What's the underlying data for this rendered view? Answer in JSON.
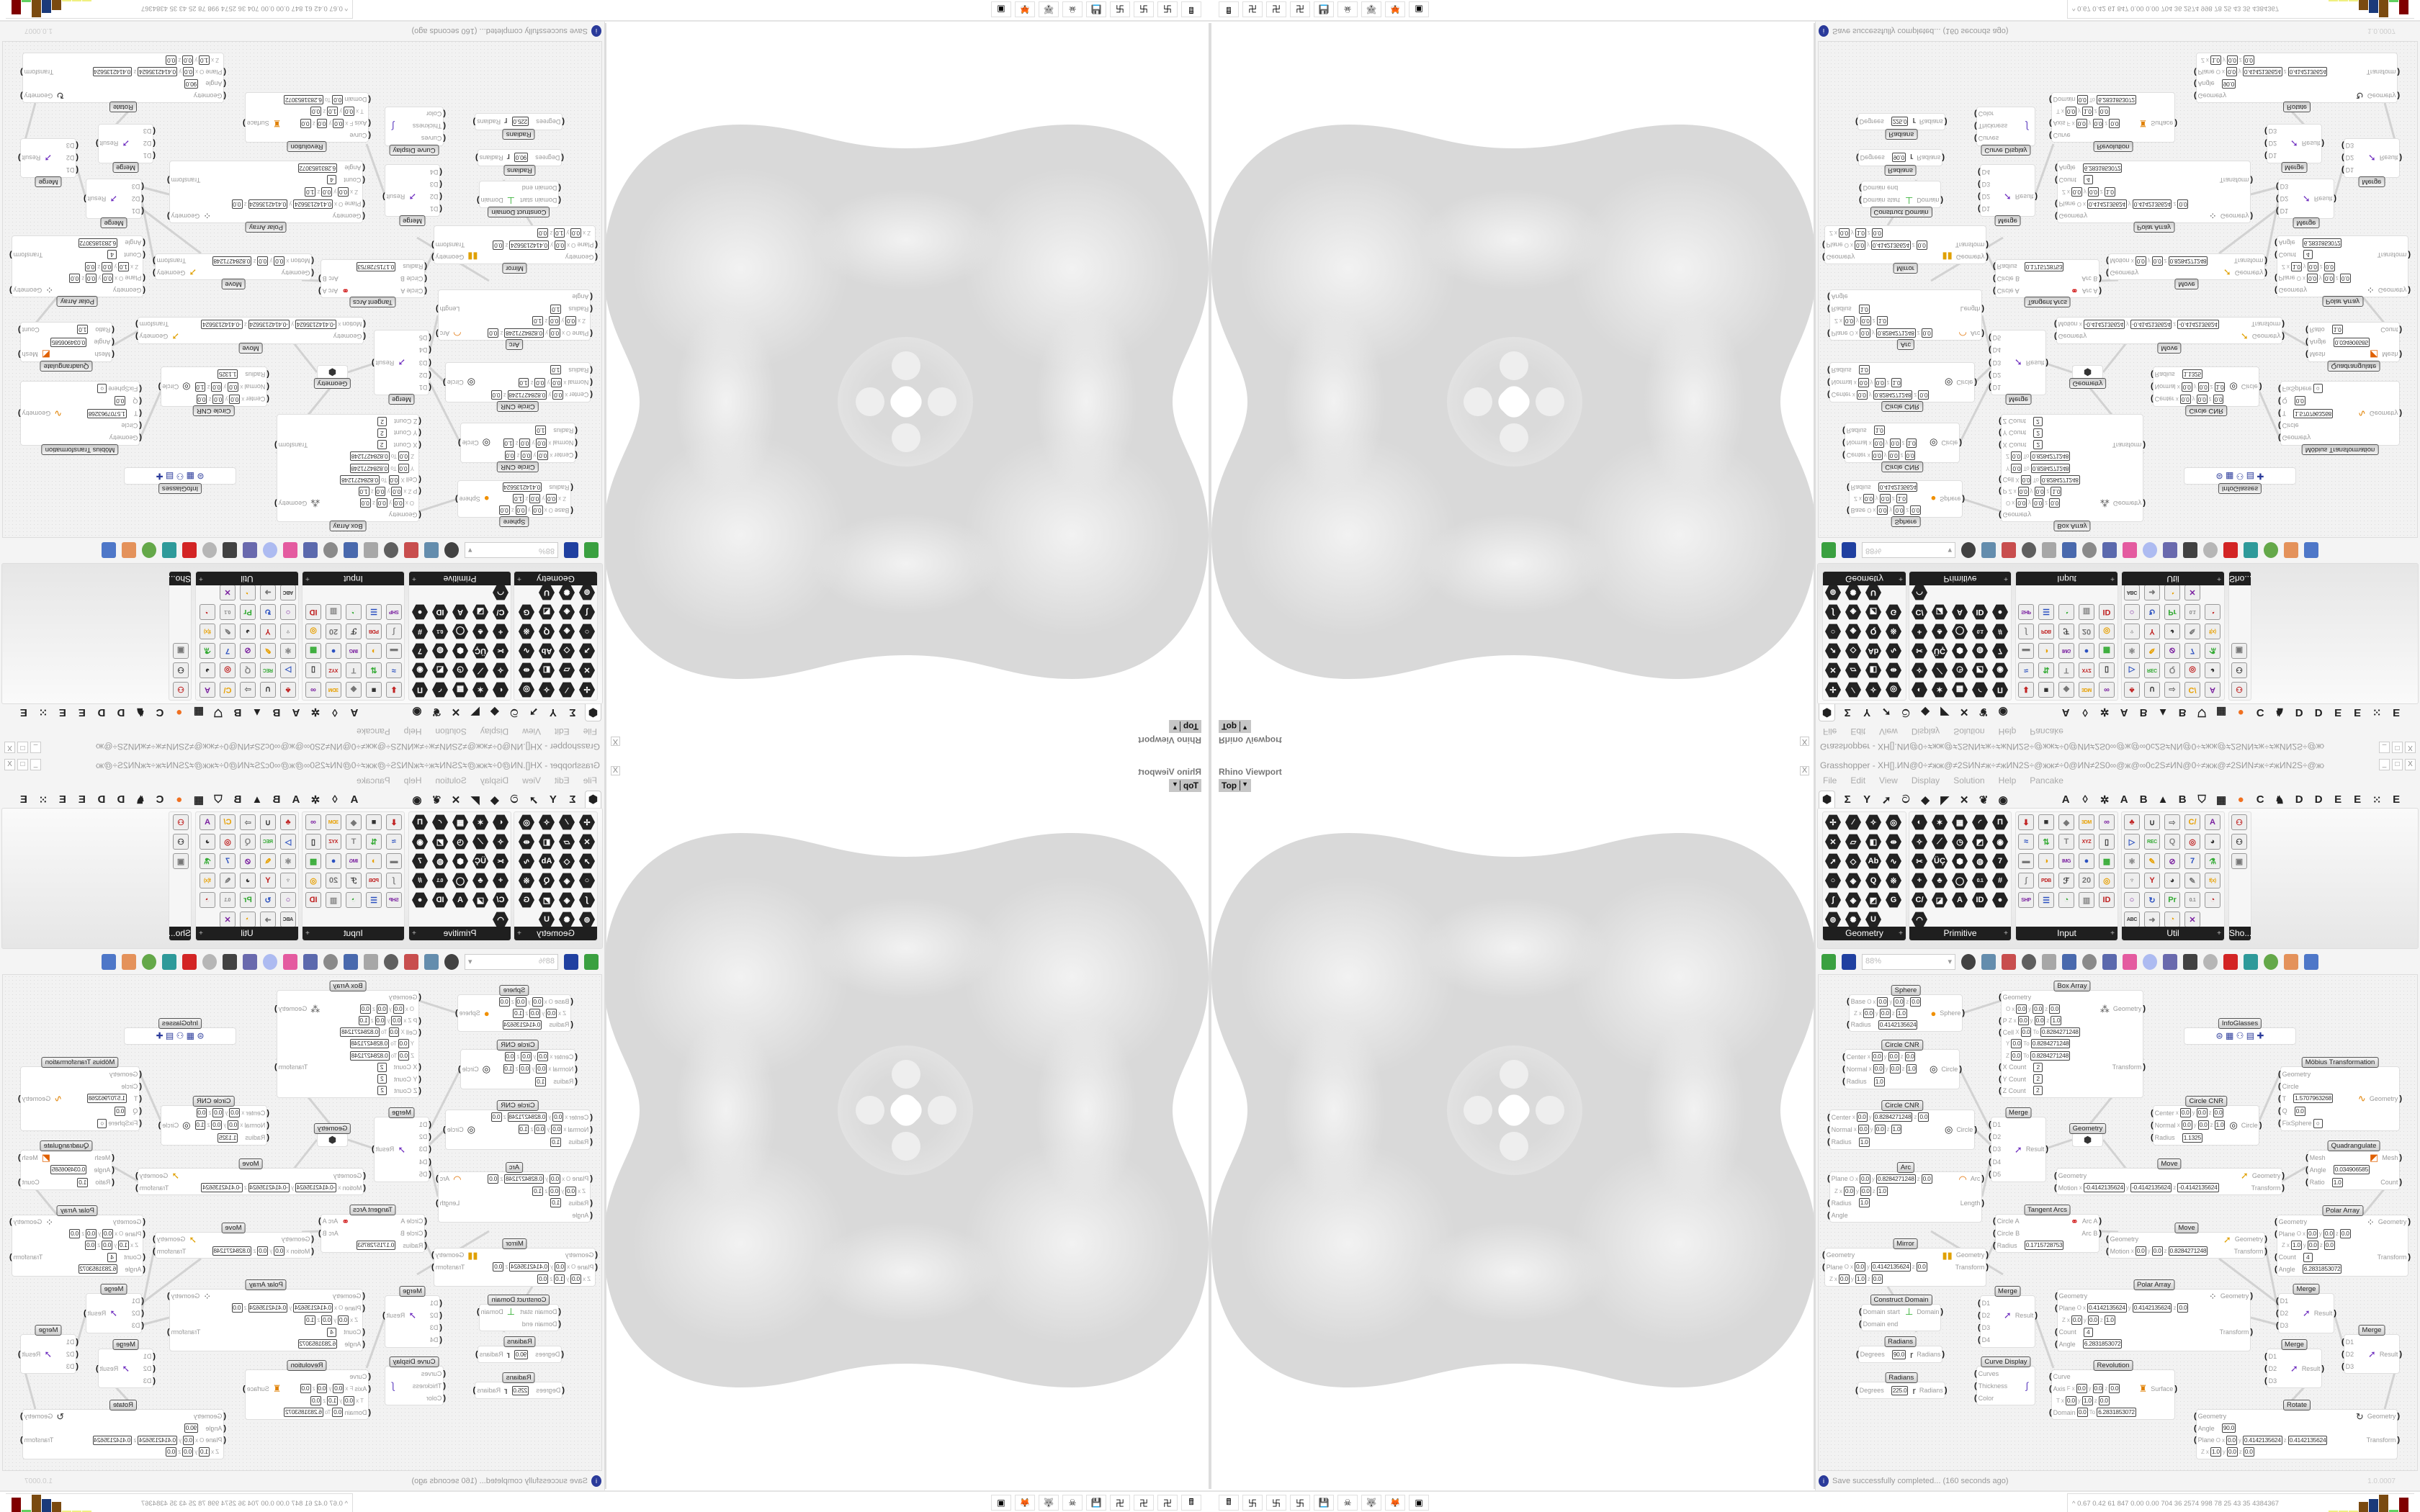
{
  "viewport": {
    "title": "Rhino Viewport",
    "view_label": "Top",
    "close_label": "X"
  },
  "grasshopper": {
    "title": "Grasshopper - XH[].ИN@0÷≠жж@≠2SИN≠ж÷≠жИN2S÷@жж≠÷0@ИN≠2S0∞@ж@∞0c2S≠ИN@0÷≠жж@≠2SИN≠ж÷≠жИN2S÷@жж≠÷0@ИN",
    "window_buttons": [
      "_",
      "□",
      "X"
    ],
    "menu": [
      "File",
      "Edit",
      "View",
      "Display",
      "Solution",
      "Help",
      "Pancake"
    ],
    "tabs": [
      {
        "icon": "params-hexagon-icon",
        "glyph": "⬢",
        "selected": true
      },
      {
        "icon": "maths-sigma-icon",
        "glyph": "Σ"
      },
      {
        "icon": "sets-branch-icon",
        "glyph": "Y"
      },
      {
        "icon": "vector-arrow-icon",
        "glyph": "➚"
      },
      {
        "icon": "curve-hook-icon",
        "glyph": "ට"
      },
      {
        "icon": "surface-icon",
        "glyph": "◆"
      },
      {
        "icon": "mesh-icon",
        "glyph": "◤"
      },
      {
        "icon": "intersect-icon",
        "glyph": "✕"
      },
      {
        "icon": "transform-icon",
        "glyph": "❦"
      },
      {
        "icon": "display-eye-icon",
        "glyph": "◉"
      },
      {
        "icon": "letter-a",
        "glyph": "A",
        "gap": true
      },
      {
        "icon": "leaf-icon",
        "glyph": "◊"
      },
      {
        "icon": "gear-icon",
        "glyph": "✲"
      },
      {
        "icon": "letter-a",
        "glyph": "A"
      },
      {
        "icon": "letter-b",
        "glyph": "B"
      },
      {
        "icon": "mountain-icon",
        "glyph": "▲"
      },
      {
        "icon": "letter-b",
        "glyph": "B"
      },
      {
        "icon": "shield-icon",
        "glyph": "⛉"
      },
      {
        "icon": "grid-icon",
        "glyph": "▦"
      },
      {
        "icon": "orange-circle-icon",
        "glyph": "●",
        "color": "#f07020"
      },
      {
        "icon": "letter-c",
        "glyph": "C"
      },
      {
        "icon": "rooster-icon",
        "glyph": "♞"
      },
      {
        "icon": "letter-d",
        "glyph": "D"
      },
      {
        "icon": "letter-d",
        "glyph": "D"
      },
      {
        "icon": "letter-e",
        "glyph": "E"
      },
      {
        "icon": "letter-e",
        "glyph": "E"
      },
      {
        "icon": "grid-dots-icon",
        "glyph": "⁙"
      },
      {
        "icon": "letter-e",
        "glyph": "E"
      }
    ],
    "palette": [
      {
        "label": "Geometry",
        "style": "hex",
        "cols": 4,
        "glyphs": [
          "✢",
          "⁄",
          "✧",
          "◎",
          "✕",
          "▱",
          "◧",
          "⇹",
          "➚",
          "◇",
          "Ab",
          "∿",
          "○",
          "◈",
          "Q",
          "※",
          "∫",
          "◈",
          "◩",
          "G",
          "⊚",
          "✺",
          "U"
        ]
      },
      {
        "label": "Primitive",
        "style": "hex",
        "cols": 5,
        "glyphs": [
          "◐",
          "✶",
          "▦",
          "◜",
          "Π",
          "✧",
          "⟋",
          "◷",
          "◩",
          "◉",
          "✂",
          "ÜÇ",
          "⬢",
          "◍",
          "7",
          "+",
          "♣",
          "◯",
          "0.1",
          "#",
          "C/",
          "◪",
          "A",
          "ID",
          "●",
          "◠"
        ]
      },
      {
        "label": "Input",
        "style": "col",
        "cols": 5,
        "glyphs": [
          "⬇",
          "■",
          "◆",
          "3DM",
          "∞",
          "≈",
          "⇅",
          "T",
          "XYZ",
          "▯",
          "▬",
          "◑",
          "IMG",
          "●",
          "▩",
          "∫",
          "PDB",
          "ℱ",
          "20",
          "◎",
          "SHP",
          "☰",
          "◔",
          "▥",
          "ID"
        ]
      },
      {
        "label": "Util",
        "style": "col",
        "cols": 5,
        "glyphs": [
          "♣",
          "∪",
          "⇨",
          "C/",
          "A",
          "▷",
          "REC",
          "Q",
          "◎",
          "◕",
          "⚛",
          "✎",
          "⊘",
          "7",
          "⚗",
          "♆",
          "Y",
          "◕",
          "✎",
          "f(x)",
          "○",
          "↻",
          "Pr",
          "0.1",
          "◔",
          "ABC",
          "➜",
          "◔",
          "✕"
        ]
      },
      {
        "label": "Sho...",
        "style": "col",
        "cols": 1,
        "glyphs": [
          "⚇",
          "⚇",
          "▣"
        ]
      }
    ],
    "palette_plus": "+",
    "toolbar": {
      "icons_left": [
        "new-file-icon",
        "save-icon"
      ],
      "zoom": "88%",
      "icons_right": [
        "zoom-extents-icon",
        "preview-eye-icon",
        "sketch-icon",
        "cluster-icon",
        "email-icon",
        "gha-icon",
        "image-icon",
        "search-icon",
        "package-icon",
        "balloon-icon",
        "wire-icon",
        "black-sphere-icon",
        "wireframe-icon",
        "red-gem-icon",
        "teal-shape-icon",
        "green-shape-icon",
        "shaded-sphere-icon",
        "blue-sphere-icon"
      ]
    },
    "status": {
      "text": "Save successfully completed... (160 seconds ago)",
      "version": "1.0.0007",
      "icon": "info-icon"
    }
  },
  "canvas": {
    "axis_labels": [
      "x",
      "y",
      "z"
    ],
    "to_label": "To",
    "components": [
      {
        "title": "Sphere",
        "icon": "sphere-icon",
        "rows": [
          {
            "in": "Base",
            "pre": "O",
            "xyz": [
              "0.0",
              "0.0",
              "0.0"
            ]
          },
          {
            "pre": "Z",
            "xyz": [
              "0.0",
              "0.0",
              "1.0"
            ],
            "out": "Sphere"
          },
          {
            "in": "Radius",
            "val": "0.4142135624"
          }
        ]
      },
      {
        "title": "Circle CNR",
        "icon": "circle-icon",
        "rows": [
          {
            "in": "Center",
            "xyz": [
              "0.0",
              "0.0",
              "0.0"
            ]
          },
          {
            "in": "Normal",
            "xyz": [
              "0.0",
              "0.0",
              "1.0"
            ],
            "out": "Circle"
          },
          {
            "in": "Radius",
            "val": "1.0"
          }
        ]
      },
      {
        "title": "Circle CNR",
        "icon": "circle-icon",
        "rows": [
          {
            "in": "Center",
            "xyz": [
              "0.0",
              "0.8284271248",
              "0.0"
            ]
          },
          {
            "in": "Normal",
            "xyz": [
              "0.0",
              "0.0",
              "1.0"
            ],
            "out": "Circle"
          },
          {
            "in": "Radius",
            "val": "1.0"
          }
        ]
      },
      {
        "title": "Arc",
        "icon": "arc-icon",
        "rows": [
          {
            "in": "Plane",
            "pre": "O",
            "xyz": [
              "0.0",
              "0.8284271248",
              "0.0"
            ],
            "out": "Arc"
          },
          {
            "pre": "Z",
            "xyz": [
              "0.0",
              "0.0",
              "1.0"
            ]
          },
          {
            "in": "Radius",
            "val": "1.0",
            "out": "Length"
          },
          {
            "in": "Angle"
          }
        ]
      },
      {
        "title": "Mirror",
        "icon": "mirror-icon",
        "rows": [
          {
            "in": "Geometry",
            "out": "Geometry"
          },
          {
            "in": "Plane",
            "pre": "O",
            "xyz": [
              "0.0",
              "0.4142135624",
              "0.0"
            ],
            "out": "Transform"
          },
          {
            "pre": "Z",
            "xyz": [
              "0.0",
              "1.0",
              "0.0"
            ]
          }
        ]
      },
      {
        "title": "Construct Domain",
        "icon": "domain-icon",
        "rows": [
          {
            "in": "Domain start",
            "out": "Domain"
          },
          {
            "in": "Domain end"
          }
        ]
      },
      {
        "title": "Radians",
        "icon": "radians-icon",
        "rows": [
          {
            "in": "Degrees",
            "val": "90.0",
            "out": "Radians"
          }
        ]
      },
      {
        "title": "Radians",
        "icon": "radians-icon",
        "rows": [
          {
            "in": "Degrees",
            "val": "225.0",
            "out": "Radians"
          }
        ]
      },
      {
        "title": "Box Array",
        "icon": "box-array-icon",
        "rows": [
          {
            "in": "Geometry"
          },
          {
            "pre": "O",
            "xyz": [
              "0.0",
              "0.0",
              "0.0"
            ],
            "out": "Geometry"
          },
          {
            "in": "P",
            "pre": "Z",
            "xyz": [
              "0.0",
              "0.0",
              "1.0"
            ]
          },
          {
            "in": "Cell",
            "pre": "X",
            "from": "0.0",
            "to": "0.8284271248"
          },
          {
            "pre": "Y",
            "from": "0.0",
            "to": "0.8284271248"
          },
          {
            "pre": "Z",
            "from": "0.0",
            "to": "0.8284271248"
          },
          {
            "in": "X Count",
            "val": "2",
            "out": "Transform"
          },
          {
            "in": "Y Count",
            "val": "2"
          },
          {
            "in": "Z Count",
            "val": "2"
          }
        ]
      },
      {
        "title": "Merge",
        "icon": "merge-icon",
        "rows": [
          {
            "in": "D1"
          },
          {
            "in": "D2"
          },
          {
            "in": "D3",
            "out": "Result"
          },
          {
            "in": "D4"
          },
          {
            "in": "D5"
          }
        ]
      },
      {
        "title": "Geometry",
        "icon": "geometry-hex-icon",
        "rows": []
      },
      {
        "title": "InfoGlasses",
        "icon": "infoglasses-icon",
        "rows": []
      },
      {
        "title": "Möbius Transformation",
        "icon": "mobius-icon",
        "rows": [
          {
            "in": "Geometry"
          },
          {
            "in": "Circle"
          },
          {
            "in": "T",
            "val": "1.5707963268",
            "out": "Geometry"
          },
          {
            "in": "Q",
            "val": "0.0"
          },
          {
            "in": "FixSphere",
            "toggle": "○"
          }
        ]
      },
      {
        "title": "Circle CNR",
        "icon": "circle-icon",
        "rows": [
          {
            "in": "Center",
            "xyz": [
              "0.0",
              "0.0",
              "0.0"
            ]
          },
          {
            "in": "Normal",
            "xyz": [
              "0.0",
              "0.0",
              "1.0"
            ],
            "out": "Circle"
          },
          {
            "in": "Radius",
            "val": "1.1325"
          }
        ]
      },
      {
        "title": "Quadrangulate",
        "icon": "quadrangulate-icon",
        "rows": [
          {
            "in": "Mesh",
            "out": "Mesh"
          },
          {
            "in": "Angle",
            "val": "0.034906585"
          },
          {
            "in": "Ratio",
            "val": "1.0",
            "out": "Count"
          }
        ]
      },
      {
        "title": "Move",
        "icon": "move-icon",
        "rows": [
          {
            "in": "Geometry",
            "out": "Geometry"
          },
          {
            "in": "Motion",
            "xyz": [
              "-0.4142135624",
              "-0.4142135624",
              "-0.4142135624"
            ],
            "out": "Transform"
          }
        ]
      },
      {
        "title": "Tangent Arcs",
        "icon": "tangent-arcs-icon",
        "rows": [
          {
            "in": "Circle A",
            "out": "Arc A"
          },
          {
            "in": "Circle B",
            "out": "Arc B"
          },
          {
            "in": "Radius",
            "val": "0.1715728753"
          }
        ]
      },
      {
        "title": "Move",
        "icon": "move-icon",
        "rows": [
          {
            "in": "Geometry",
            "out": "Geometry"
          },
          {
            "in": "Motion",
            "xyz": [
              "0.0",
              "0.0",
              "0.8284271248"
            ],
            "out": "Transform"
          }
        ]
      },
      {
        "title": "Polar Array",
        "icon": "polar-array-icon",
        "rows": [
          {
            "in": "Geometry",
            "out": "Geometry"
          },
          {
            "in": "Plane",
            "pre": "O",
            "xyz": [
              "0.0",
              "0.0",
              "0.0"
            ]
          },
          {
            "pre": "Z",
            "xyz": [
              "1.0",
              "0.0",
              "0.0"
            ]
          },
          {
            "in": "Count",
            "val": "4",
            "out": "Transform"
          },
          {
            "in": "Angle",
            "val": "6.2831853072"
          }
        ]
      },
      {
        "title": "Merge",
        "icon": "merge-icon",
        "rows": [
          {
            "in": "D1"
          },
          {
            "in": "D2",
            "out": "Result"
          },
          {
            "in": "D3"
          },
          {
            "in": "D4"
          }
        ]
      },
      {
        "title": "Curve Display",
        "icon": "curve-display-icon",
        "rows": [
          {
            "in": "Curves"
          },
          {
            "in": "Thickness"
          },
          {
            "in": "Color"
          }
        ]
      },
      {
        "title": "Polar Array",
        "icon": "polar-array-icon",
        "rows": [
          {
            "in": "Geometry",
            "out": "Geometry"
          },
          {
            "in": "Plane",
            "pre": "O",
            "xyz": [
              "0.4142135624",
              "0.4142135624",
              "0.0"
            ]
          },
          {
            "pre": "Z",
            "xyz": [
              "0.0",
              "0.0",
              "1.0"
            ]
          },
          {
            "in": "Count",
            "val": "4",
            "out": "Transform"
          },
          {
            "in": "Angle",
            "val": "6.2831853072"
          }
        ]
      },
      {
        "title": "Revolution",
        "icon": "revolution-icon",
        "rows": [
          {
            "in": "Curve"
          },
          {
            "in": "Axis",
            "pre": "F",
            "xyz": [
              "0.0",
              "0.0",
              "0.0"
            ],
            "out": "Surface"
          },
          {
            "pre": "T",
            "xyz": [
              "0.0",
              "1.0",
              "0.0"
            ]
          },
          {
            "in": "Domain",
            "from": "0.0",
            "to": "6.2831853072"
          }
        ]
      },
      {
        "title": "Merge",
        "icon": "merge-icon",
        "rows": [
          {
            "in": "D1"
          },
          {
            "in": "D2",
            "out": "Result"
          },
          {
            "in": "D3"
          }
        ]
      },
      {
        "title": "Merge",
        "icon": "merge-icon",
        "rows": [
          {
            "in": "D1"
          },
          {
            "in": "D2",
            "out": "Result"
          },
          {
            "in": "D3"
          }
        ]
      },
      {
        "title": "Merge",
        "icon": "merge-icon",
        "rows": [
          {
            "in": "D1"
          },
          {
            "in": "D2",
            "out": "Result"
          },
          {
            "in": "D3"
          }
        ]
      },
      {
        "title": "Rotate",
        "icon": "rotate-icon",
        "rows": [
          {
            "in": "Geometry",
            "out": "Geometry"
          },
          {
            "in": "Angle",
            "val": "90.0"
          },
          {
            "in": "Plane",
            "pre": "O",
            "xyz": [
              "0.0",
              "0.4142135624",
              "0.4142135624"
            ],
            "out": "Transform"
          },
          {
            "pre": "Z",
            "xyz": [
              "1.0",
              "0.0",
              "0.0"
            ]
          }
        ]
      }
    ]
  },
  "taskbar": {
    "icons": [
      "calculator-icon",
      "maze-app-icon",
      "maze-app-icon",
      "maze-app-icon",
      "floppy-64-icon",
      "red-skull-app-icon",
      "wolf-app-icon",
      "firefox-icon",
      "terminal-icon"
    ],
    "meter_caret": "^",
    "meter_text": "0.67 0.42 61 847 0.00 0.00 704 36 2574 998 78 25 43 35 4384367",
    "bar_colors": [
      "#f0f080",
      "#f0f080",
      "#f0f080",
      "#7a4a10",
      "#1a3a7a",
      "#7a4a10",
      "#60d060",
      "#800000"
    ]
  }
}
